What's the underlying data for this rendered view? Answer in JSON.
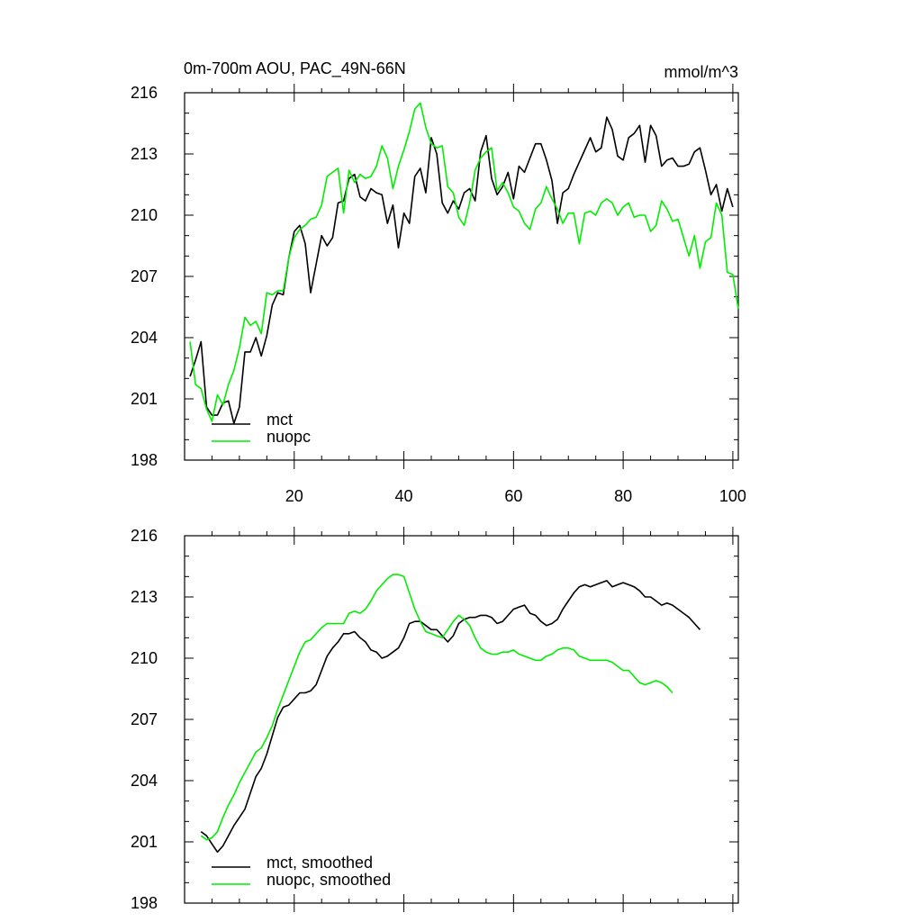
{
  "chart_data": [
    {
      "type": "line",
      "title": "0m-700m AOU, PAC_49N-66N",
      "units": "mmol/m^3",
      "xlim": [
        0,
        101
      ],
      "ylim": [
        198,
        216
      ],
      "x_ticks": [
        20,
        40,
        60,
        80,
        100
      ],
      "y_ticks": [
        198,
        201,
        204,
        207,
        210,
        213,
        216
      ],
      "x_tick_labels_shown": true,
      "grid": false,
      "legend_position": "bottom-left",
      "series": [
        {
          "name": "mct",
          "color": "#000000",
          "x_start": 1,
          "values": [
            202.1,
            202.9,
            203.8,
            200.6,
            200.2,
            200.2,
            200.8,
            200.9,
            199.8,
            200.6,
            203.3,
            203.3,
            204.0,
            203.1,
            204.1,
            205.6,
            206.2,
            206.1,
            207.9,
            209.2,
            209.5,
            208.6,
            206.2,
            207.6,
            209.0,
            208.5,
            208.9,
            210.6,
            210.7,
            211.8,
            212.0,
            210.9,
            210.7,
            211.3,
            211.1,
            211.0,
            209.6,
            210.5,
            208.4,
            210.1,
            209.6,
            211.9,
            212.3,
            211.1,
            213.8,
            213.0,
            210.6,
            210.1,
            210.7,
            210.3,
            211.1,
            211.3,
            210.7,
            213.1,
            213.9,
            211.8,
            211.0,
            211.4,
            212.1,
            210.8,
            212.4,
            212.1,
            212.8,
            213.5,
            213.5,
            212.7,
            211.7,
            209.6,
            211.1,
            211.3,
            212.0,
            212.6,
            213.2,
            213.8,
            213.1,
            213.3,
            214.8,
            214.2,
            212.9,
            212.7,
            213.8,
            214.0,
            214.4,
            212.6,
            214.4,
            213.9,
            212.4,
            212.7,
            212.8,
            212.4,
            212.4,
            212.5,
            213.1,
            213.3,
            212.2,
            211.0,
            211.5,
            210.2,
            211.3,
            210.4
          ]
        },
        {
          "name": "nuopc",
          "color": "#00ee00",
          "x_start": 1,
          "values": [
            203.8,
            201.7,
            201.5,
            200.5,
            199.9,
            201.2,
            200.7,
            201.7,
            202.4,
            203.5,
            205.0,
            204.6,
            204.8,
            204.2,
            206.2,
            206.1,
            206.3,
            206.3,
            207.9,
            208.9,
            209.3,
            209.5,
            209.8,
            209.9,
            210.5,
            211.9,
            212.1,
            212.3,
            210.1,
            212.2,
            211.6,
            212.0,
            211.8,
            211.9,
            212.4,
            213.4,
            212.8,
            211.3,
            212.4,
            213.2,
            214.1,
            215.2,
            215.5,
            214.3,
            213.5,
            213.3,
            213.4,
            211.4,
            211.1,
            209.9,
            209.5,
            210.6,
            212.2,
            212.8,
            213.1,
            213.3,
            211.2,
            211.6,
            211.1,
            210.4,
            210.2,
            209.6,
            209.3,
            210.3,
            210.6,
            211.4,
            210.8,
            210.3,
            209.6,
            210.1,
            210.1,
            208.6,
            210.1,
            210.2,
            210.0,
            210.6,
            210.8,
            210.6,
            210.0,
            210.4,
            210.6,
            209.9,
            210.0,
            210.0,
            209.2,
            209.5,
            210.7,
            210.3,
            209.7,
            209.8,
            208.9,
            208.0,
            209.0,
            207.4,
            208.7,
            208.9,
            210.6,
            210.0,
            207.2,
            207.1,
            205.4
          ]
        }
      ]
    },
    {
      "type": "line",
      "xlim": [
        0,
        101
      ],
      "ylim": [
        198,
        216
      ],
      "x_ticks": [
        20,
        40,
        60,
        80,
        100
      ],
      "y_ticks": [
        198,
        201,
        204,
        207,
        210,
        213,
        216
      ],
      "x_tick_labels_shown": false,
      "grid": false,
      "legend_position": "bottom-left",
      "series": [
        {
          "name": "mct, smoothed",
          "color": "#000000",
          "x_start": 3,
          "values": [
            201.5,
            201.3,
            200.9,
            200.5,
            200.8,
            201.3,
            201.8,
            202.2,
            202.6,
            203.4,
            204.2,
            204.6,
            205.3,
            206.2,
            207.1,
            207.6,
            207.7,
            208.0,
            208.3,
            208.3,
            208.4,
            208.7,
            209.4,
            210.1,
            210.5,
            210.8,
            211.2,
            211.2,
            211.3,
            211.0,
            210.8,
            210.4,
            210.3,
            210.0,
            210.1,
            210.3,
            210.5,
            211.0,
            211.7,
            211.8,
            211.8,
            211.6,
            211.4,
            211.4,
            211.1,
            210.8,
            211.1,
            211.7,
            211.9,
            212.0,
            212.0,
            212.1,
            212.1,
            212.0,
            211.7,
            211.8,
            212.1,
            212.4,
            212.5,
            212.6,
            212.2,
            212.1,
            211.8,
            211.6,
            211.7,
            211.9,
            212.4,
            212.8,
            213.2,
            213.5,
            213.6,
            213.5,
            213.6,
            213.7,
            213.8,
            213.5,
            213.6,
            213.7,
            213.6,
            213.5,
            213.3,
            213.0,
            213.0,
            212.8,
            212.6,
            212.7,
            212.6,
            212.4,
            212.2,
            212.0,
            211.7,
            211.4
          ]
        },
        {
          "name": "nuopc, smoothed",
          "color": "#00ee00",
          "x_start": 3,
          "values": [
            201.3,
            201.1,
            201.2,
            201.5,
            202.2,
            202.8,
            203.3,
            203.9,
            204.4,
            204.9,
            205.4,
            205.6,
            206.1,
            206.7,
            207.5,
            208.2,
            208.9,
            209.6,
            210.3,
            210.8,
            210.9,
            211.2,
            211.5,
            211.7,
            211.7,
            211.7,
            211.7,
            212.2,
            212.3,
            212.2,
            212.4,
            212.8,
            213.3,
            213.6,
            213.9,
            214.1,
            214.1,
            214.0,
            213.2,
            212.4,
            211.8,
            211.3,
            211.2,
            211.1,
            211.0,
            211.4,
            211.8,
            212.1,
            211.9,
            211.6,
            211.0,
            210.5,
            210.3,
            210.2,
            210.2,
            210.3,
            210.3,
            210.4,
            210.2,
            210.1,
            210.0,
            209.9,
            209.9,
            210.1,
            210.2,
            210.4,
            210.5,
            210.5,
            210.4,
            210.1,
            210.0,
            209.9,
            209.9,
            209.9,
            209.9,
            209.8,
            209.6,
            209.4,
            209.4,
            209.1,
            208.8,
            208.7,
            208.8,
            208.9,
            208.8,
            208.6,
            208.3
          ]
        }
      ]
    }
  ]
}
